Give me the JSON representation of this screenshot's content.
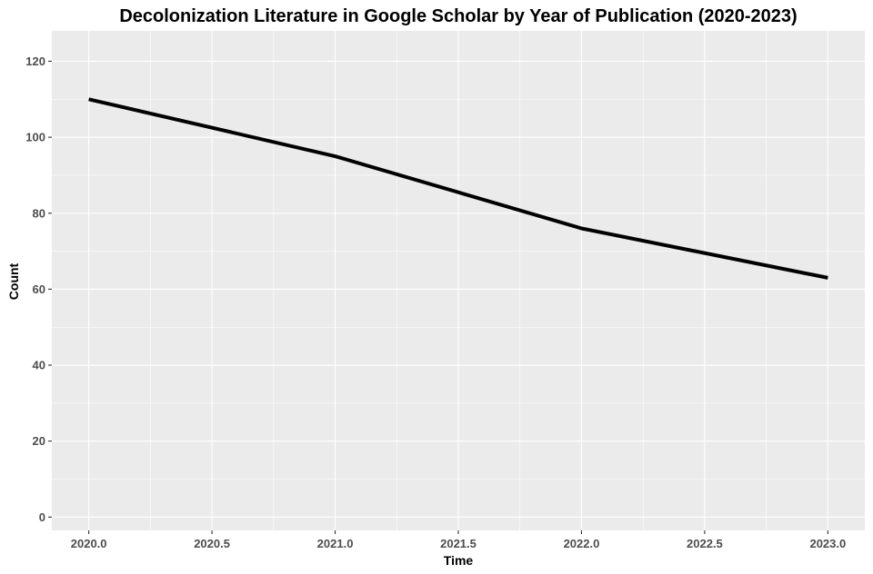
{
  "chart_data": {
    "type": "line",
    "title": "Decolonization Literature in Google Scholar by Year of Publication (2020-2023)",
    "xlabel": "Time",
    "ylabel": "Count",
    "x": [
      2020,
      2021,
      2022,
      2023
    ],
    "series": [
      {
        "values": [
          110,
          95,
          76,
          63
        ],
        "color": "#000000"
      }
    ],
    "xlim": [
      2019.85,
      2023.15
    ],
    "ylim": [
      -3.5,
      128
    ],
    "x_ticks": [
      2020.0,
      2020.5,
      2021.0,
      2021.5,
      2022.0,
      2022.5,
      2023.0
    ],
    "x_tick_labels": [
      "2020.0",
      "2020.5",
      "2021.0",
      "2021.5",
      "2022.0",
      "2022.5",
      "2023.0"
    ],
    "y_ticks": [
      0,
      20,
      40,
      60,
      80,
      100,
      120
    ],
    "y_tick_labels": [
      "0",
      "20",
      "40",
      "60",
      "80",
      "100",
      "120"
    ],
    "grid": true,
    "legend": "none",
    "panel_background": "#ebebeb",
    "grid_color": "#ffffff"
  }
}
